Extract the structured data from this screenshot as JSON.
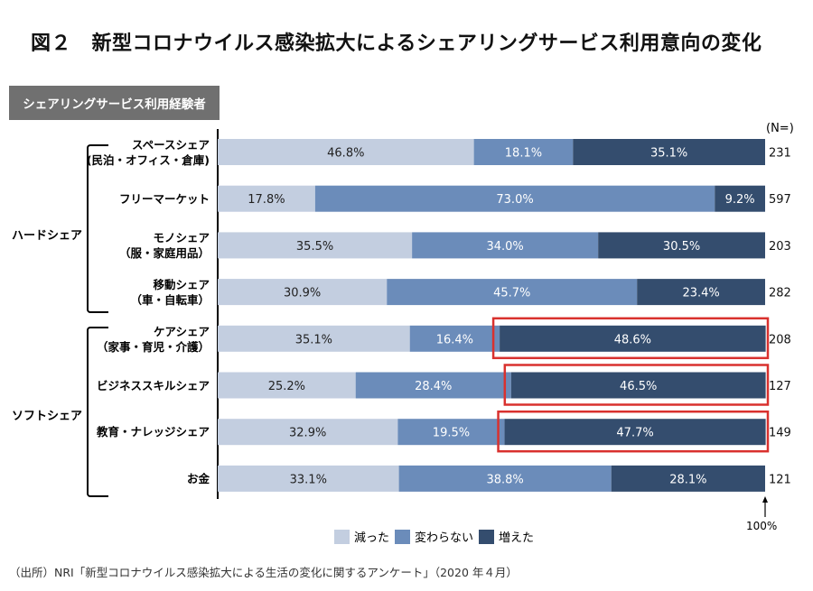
{
  "title": "図２　新型コロナウイルス感染拡大によるシェアリングサービス利用意向の変化",
  "badge": "シェアリングサービス利用経験者",
  "groups": [
    {
      "label": "ハードシェア"
    },
    {
      "label": "ソフトシェア"
    }
  ],
  "n_header": "(N=)",
  "hundred_label": "100%",
  "footer": "（出所）NRI「新型コロナウイルス感染拡大による生活の変化に関するアンケート」（2020 年４月）",
  "colors": {
    "decreased": "#c3cee0",
    "unchanged": "#6b8cba",
    "increased": "#344d6e",
    "highlight": "#d9312e"
  },
  "chart_data": {
    "type": "bar",
    "orientation": "horizontal",
    "stacked": true,
    "title": "新型コロナウイルス感染拡大によるシェアリングサービス利用意向の変化",
    "xlim": [
      0,
      100
    ],
    "unit": "%",
    "categories": [
      {
        "line1": "スペースシェア",
        "line2": "(民泊・オフィス・倉庫)",
        "group": "ハードシェア",
        "n": "231"
      },
      {
        "line1": "フリーマーケット",
        "line2": "",
        "group": "ハードシェア",
        "n": "597"
      },
      {
        "line1": "モノシェア",
        "line2": "（服・家庭用品）",
        "group": "ハードシェア",
        "n": "203"
      },
      {
        "line1": "移動シェア",
        "line2": "（車・自転車）",
        "group": "ハードシェア",
        "n": "282"
      },
      {
        "line1": "ケアシェア",
        "line2": "（家事・育児・介護）",
        "group": "ソフトシェア",
        "n": "208"
      },
      {
        "line1": "ビジネススキルシェア",
        "line2": "",
        "group": "ソフトシェア",
        "n": "127"
      },
      {
        "line1": "教育・ナレッジシェア",
        "line2": "",
        "group": "ソフトシェア",
        "n": "149"
      },
      {
        "line1": "お金",
        "line2": "",
        "group": "ソフトシェア",
        "n": "121"
      }
    ],
    "series": [
      {
        "name": "減った",
        "key": "decreased",
        "values": [
          46.8,
          17.8,
          35.5,
          30.9,
          35.1,
          25.2,
          32.9,
          33.1
        ]
      },
      {
        "name": "変わらない",
        "key": "unchanged",
        "values": [
          18.1,
          73.0,
          34.0,
          45.7,
          16.4,
          28.4,
          19.5,
          38.8
        ]
      },
      {
        "name": "増えた",
        "key": "increased",
        "values": [
          35.1,
          9.2,
          30.5,
          23.4,
          48.6,
          46.5,
          47.7,
          28.1
        ]
      }
    ],
    "highlighted": [
      {
        "category_index": 4,
        "series": "増えた"
      },
      {
        "category_index": 5,
        "series": "増えた"
      },
      {
        "category_index": 6,
        "series": "増えた"
      }
    ],
    "legend": [
      "減った",
      "変わらない",
      "増えた"
    ],
    "legend_position": "bottom"
  }
}
